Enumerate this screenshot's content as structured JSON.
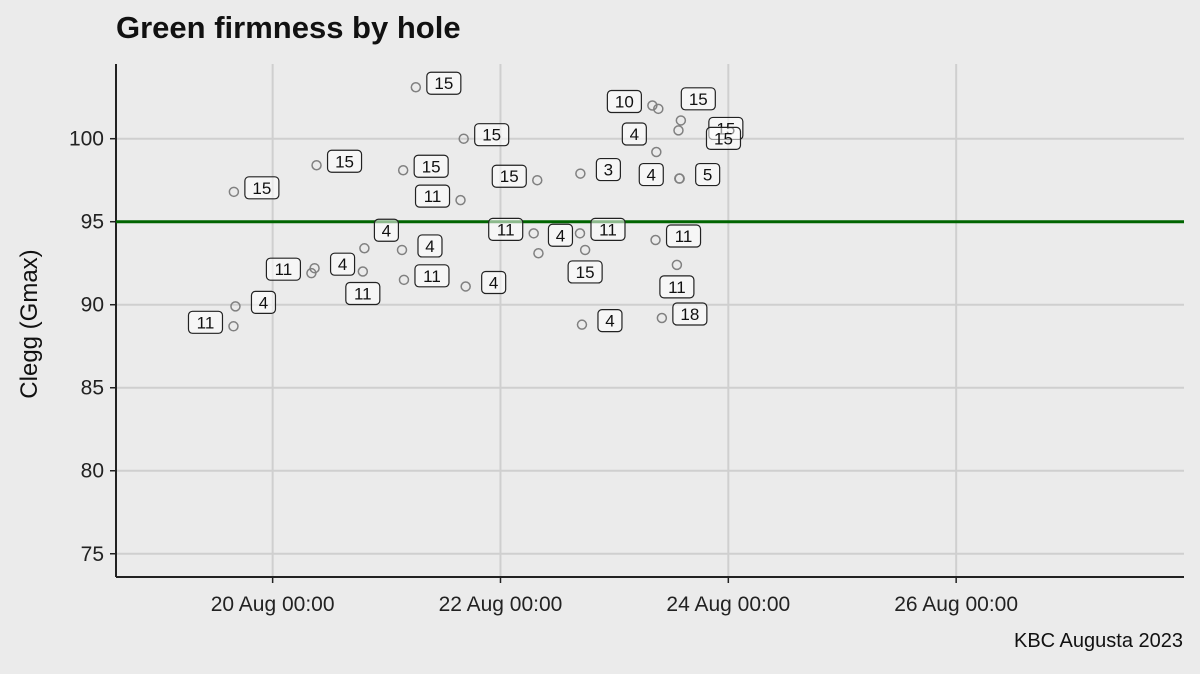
{
  "title": "Green firmness by hole",
  "caption": "KBC Augusta 2023",
  "chart_data": {
    "type": "scatter",
    "title": "Green firmness by hole",
    "xlabel": "",
    "ylabel": "Clegg (Gmax)",
    "x_ticks": [
      "2023-08-20T00:00",
      "2023-08-22T00:00",
      "2023-08-24T00:00",
      "2023-08-26T00:00"
    ],
    "x_tick_labels": [
      "20 Aug 00:00",
      "22 Aug 00:00",
      "24 Aug 00:00",
      "26 Aug 00:00"
    ],
    "y_ticks": [
      75,
      80,
      85,
      90,
      95,
      100
    ],
    "xlim": [
      "2023-08-18T15:00",
      "2023-08-28T00:00"
    ],
    "ylim": [
      73.6,
      104.5
    ],
    "grid": true,
    "reference_line": {
      "y": 95,
      "color": "#006400"
    },
    "point_color": "#808080",
    "points": [
      {
        "x": "2023-08-21T06:10",
        "y": 103.1,
        "hole": "15"
      },
      {
        "x": "2023-08-21T16:15",
        "y": 100.0,
        "hole": "15"
      },
      {
        "x": "2023-08-20T09:15",
        "y": 98.4,
        "hole": "15"
      },
      {
        "x": "2023-08-21T03:30",
        "y": 98.1,
        "hole": "15"
      },
      {
        "x": "2023-08-19T15:50",
        "y": 96.8,
        "hole": "15"
      },
      {
        "x": "2023-08-22T07:45",
        "y": 97.5,
        "hole": "15"
      },
      {
        "x": "2023-08-21T15:35",
        "y": 96.3,
        "hole": "11"
      },
      {
        "x": "2023-08-23T08:00",
        "y": 102.0,
        "hole": "10"
      },
      {
        "x": "2023-08-23T09:15",
        "y": 101.8,
        "hole": "15"
      },
      {
        "x": "2023-08-23T14:00",
        "y": 101.1,
        "hole": "15"
      },
      {
        "x": "2023-08-23T13:30",
        "y": 100.5,
        "hole": "15"
      },
      {
        "x": "2023-08-22T16:50",
        "y": 97.9,
        "hole": "3"
      },
      {
        "x": "2023-08-23T08:50",
        "y": 99.2,
        "hole": "4"
      },
      {
        "x": "2023-08-23T13:45",
        "y": 97.6,
        "hole": "5"
      },
      {
        "x": "2023-08-23T13:40",
        "y": 97.6,
        "hole": "4"
      },
      {
        "x": "2023-08-22T07:00",
        "y": 94.3,
        "hole": "11"
      },
      {
        "x": "2023-08-22T16:45",
        "y": 94.3,
        "hole": "11"
      },
      {
        "x": "2023-08-23T08:40",
        "y": 93.9,
        "hole": "11"
      },
      {
        "x": "2023-08-20T08:50",
        "y": 92.2,
        "hole": "4"
      },
      {
        "x": "2023-08-20T08:10",
        "y": 91.9,
        "hole": "11"
      },
      {
        "x": "2023-08-20T19:20",
        "y": 93.4,
        "hole": "4"
      },
      {
        "x": "2023-08-21T03:15",
        "y": 93.3,
        "hole": "4"
      },
      {
        "x": "2023-08-20T19:00",
        "y": 92.0,
        "hole": "11"
      },
      {
        "x": "2023-08-21T03:40",
        "y": 91.5,
        "hole": "11"
      },
      {
        "x": "2023-08-21T16:40",
        "y": 91.1,
        "hole": "4"
      },
      {
        "x": "2023-08-22T08:00",
        "y": 93.1,
        "hole": "4"
      },
      {
        "x": "2023-08-22T17:50",
        "y": 93.3,
        "hole": "15"
      },
      {
        "x": "2023-08-22T17:10",
        "y": 88.8,
        "hole": "4"
      },
      {
        "x": "2023-08-23T13:10",
        "y": 92.4,
        "hole": "11"
      },
      {
        "x": "2023-08-23T10:00",
        "y": 89.2,
        "hole": "18"
      },
      {
        "x": "2023-08-19T16:10",
        "y": 89.9,
        "hole": "4"
      },
      {
        "x": "2023-08-19T15:45",
        "y": 88.7,
        "hole": "11"
      }
    ]
  }
}
